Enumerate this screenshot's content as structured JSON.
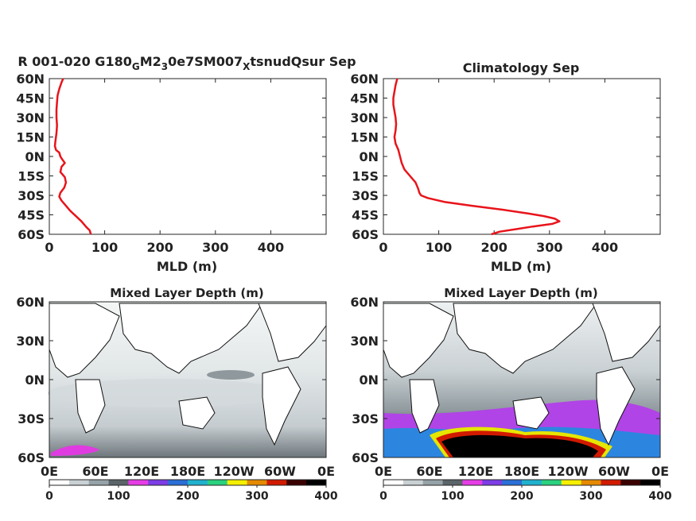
{
  "colors": {
    "profile_line": "#e8141b",
    "axis": "#262626",
    "colormap": [
      "#ffffff",
      "#c9d1d4",
      "#96a2a8",
      "#5a6469",
      "#e63ce6",
      "#7c3ce6",
      "#2b6fd6",
      "#21b1cf",
      "#2ad17e",
      "#f5f000",
      "#e58a00",
      "#d11a00",
      "#3a0000",
      "#000000"
    ]
  },
  "chart_data": [
    {
      "type": "line",
      "title_parts": [
        {
          "text": "R 001-020 G180",
          "sub": false
        },
        {
          "text": "G",
          "sub": true
        },
        {
          "text": "M2",
          "sub": false
        },
        {
          "text": "3",
          "sub": true
        },
        {
          "text": "0e7SM007",
          "sub": false
        },
        {
          "text": "X",
          "sub": true
        },
        {
          "text": "tsnudQsur Sep",
          "sub": false
        }
      ],
      "xlabel": "MLD (m)",
      "xlim": [
        0,
        500
      ],
      "xticks": [
        "0",
        "100",
        "200",
        "300",
        "400"
      ],
      "ylim": [
        -60,
        60
      ],
      "yticks": [
        "60N",
        "45N",
        "30N",
        "15N",
        "0N",
        "15S",
        "30S",
        "45S",
        "60S"
      ],
      "series": [
        {
          "lat": [
            60,
            57,
            52,
            47,
            42,
            36,
            30,
            24,
            18,
            12,
            8,
            5,
            3,
            0,
            -2,
            -5,
            -8,
            -12,
            -16,
            -20,
            -24,
            -28,
            -31,
            -34,
            -38,
            -42,
            -46,
            -50,
            -54,
            -57,
            -60
          ],
          "mld": [
            25,
            22,
            18,
            15,
            14,
            13,
            13,
            14,
            13,
            11,
            10,
            12,
            18,
            20,
            23,
            28,
            22,
            20,
            28,
            30,
            27,
            20,
            18,
            22,
            30,
            38,
            48,
            58,
            66,
            73,
            75
          ]
        }
      ]
    },
    {
      "type": "line",
      "title": "Climatology Sep",
      "xlabel": "MLD (m)",
      "xlim": [
        0,
        500
      ],
      "xticks": [
        "0",
        "100",
        "200",
        "300",
        "400"
      ],
      "ylim": [
        -60,
        60
      ],
      "yticks": [
        "60N",
        "45N",
        "30N",
        "15N",
        "0N",
        "15S",
        "30S",
        "45S",
        "60S"
      ],
      "series": [
        {
          "lat": [
            60,
            55,
            50,
            45,
            40,
            35,
            30,
            25,
            20,
            15,
            10,
            5,
            0,
            -5,
            -10,
            -15,
            -20,
            -25,
            -28,
            -30,
            -32,
            -35,
            -38,
            -41,
            -44,
            -46,
            -48,
            -50,
            -52,
            -54,
            -56,
            -58,
            -60
          ],
          "mld": [
            25,
            22,
            20,
            18,
            18,
            20,
            22,
            23,
            22,
            20,
            22,
            27,
            30,
            33,
            38,
            48,
            58,
            63,
            65,
            68,
            80,
            110,
            160,
            215,
            262,
            290,
            310,
            318,
            305,
            270,
            240,
            210,
            195
          ]
        }
      ]
    },
    {
      "type": "heatmap",
      "title": "Mixed Layer Depth (m)",
      "xticks": [
        "0E",
        "60E",
        "120E",
        "180E",
        "120W",
        "60W",
        "0E"
      ],
      "yticks": [
        "60N",
        "30N",
        "0N",
        "30S",
        "60S"
      ],
      "colorbar_ticks": [
        "0",
        "100",
        "200",
        "300",
        "400"
      ],
      "clim": [
        0,
        400
      ]
    },
    {
      "type": "heatmap",
      "title": "Mixed Layer Depth (m)",
      "xticks": [
        "0E",
        "60E",
        "120E",
        "180E",
        "120W",
        "60W",
        "0E"
      ],
      "yticks": [
        "60N",
        "30N",
        "0N",
        "30S",
        "60S"
      ],
      "colorbar_ticks": [
        "0",
        "100",
        "200",
        "300",
        "400"
      ],
      "clim": [
        0,
        400
      ]
    }
  ]
}
